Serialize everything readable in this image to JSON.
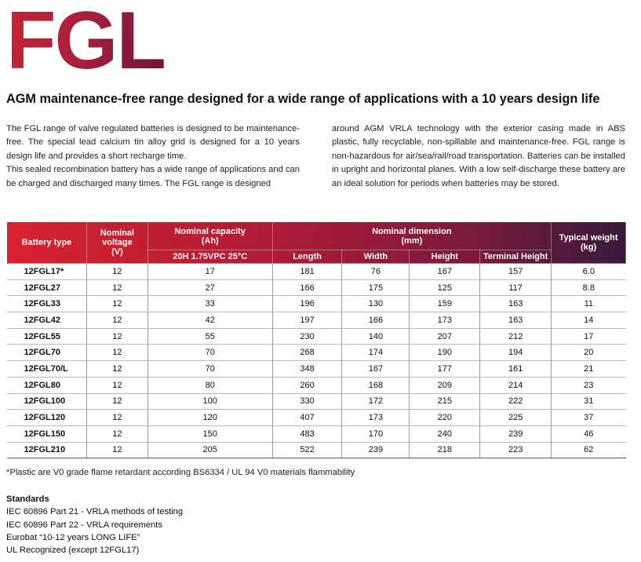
{
  "logo": {
    "text": "FGL"
  },
  "headline": "AGM maintenance-free range designed for a wide range of applications with a 10 years design life",
  "intro": {
    "left_p1": "The FGL range of valve regulated batteries is designed to be maintenance-free. The special lead calcium tin alloy grid is designed for a 10 years design life and provides a short recharge time.",
    "left_p2": "This sealed recombination battery has a wide range of applications and can be charged and discharged many times. The FGL range is designed",
    "right_p1": "around AGM VRLA technology with the exterior casing made in ABS plastic, fully recyclable, non-spillable and maintenance-free. FGL range is non-hazardous for air/sea/rail/road transportation. Batteries can be installed in upright and horizontal planes. With a low self-discharge these battery are an ideal solution for periods when batteries may be stored."
  },
  "table": {
    "headers": {
      "battery_type": "Battery type",
      "nominal_voltage_l1": "Nominal",
      "nominal_voltage_l2": "voltage",
      "nominal_voltage_l3": "(V)",
      "capacity_l1": "Nominal capacity",
      "capacity_l2": "(Ah)",
      "capacity_sub": "20H 1.75VPC 25°C",
      "dimension_l1": "Nominal dimension",
      "dimension_l2": "(mm)",
      "length": "Length",
      "width": "Width",
      "height": "Height",
      "terminal_height": "Terminal Height",
      "weight_l1": "Typical weight",
      "weight_l2": "(kg)"
    },
    "rows": [
      [
        "12FGL17*",
        "12",
        "17",
        "181",
        "76",
        "167",
        "157",
        "6.0"
      ],
      [
        "12FGL27",
        "12",
        "27",
        "166",
        "175",
        "125",
        "117",
        "8.8"
      ],
      [
        "12FGL33",
        "12",
        "33",
        "196",
        "130",
        "159",
        "163",
        "11"
      ],
      [
        "12FGL42",
        "12",
        "42",
        "197",
        "166",
        "173",
        "163",
        "14"
      ],
      [
        "12FGL55",
        "12",
        "55",
        "230",
        "140",
        "207",
        "212",
        "17"
      ],
      [
        "12FGL70",
        "12",
        "70",
        "268",
        "174",
        "190",
        "194",
        "20"
      ],
      [
        "12FGL70/L",
        "12",
        "70",
        "348",
        "167",
        "177",
        "161",
        "21"
      ],
      [
        "12FGL80",
        "12",
        "80",
        "260",
        "168",
        "209",
        "214",
        "23"
      ],
      [
        "12FGL100",
        "12",
        "100",
        "330",
        "172",
        "215",
        "222",
        "31"
      ],
      [
        "12FGL120",
        "12",
        "120",
        "407",
        "173",
        "220",
        "225",
        "37"
      ],
      [
        "12FGL150",
        "12",
        "150",
        "483",
        "170",
        "240",
        "239",
        "46"
      ],
      [
        "12FGL210",
        "12",
        "205",
        "522",
        "239",
        "218",
        "223",
        "62"
      ]
    ]
  },
  "note": "*Plastic are V0 grade flame retardant according BS6334 / UL 94 V0 materials flammability",
  "standards": {
    "title": "Standards",
    "items": [
      "IEC 60896 Part 21 - VRLA methods of testing",
      "IEC 60896 Part 22 - VRLA requirements",
      "Eurobat “10-12 years LONG LIFE”",
      "UL Recognized (except 12FGL17)"
    ]
  },
  "colors": {
    "brand_red": "#d7232e",
    "brand_dark": "#381a3c"
  }
}
